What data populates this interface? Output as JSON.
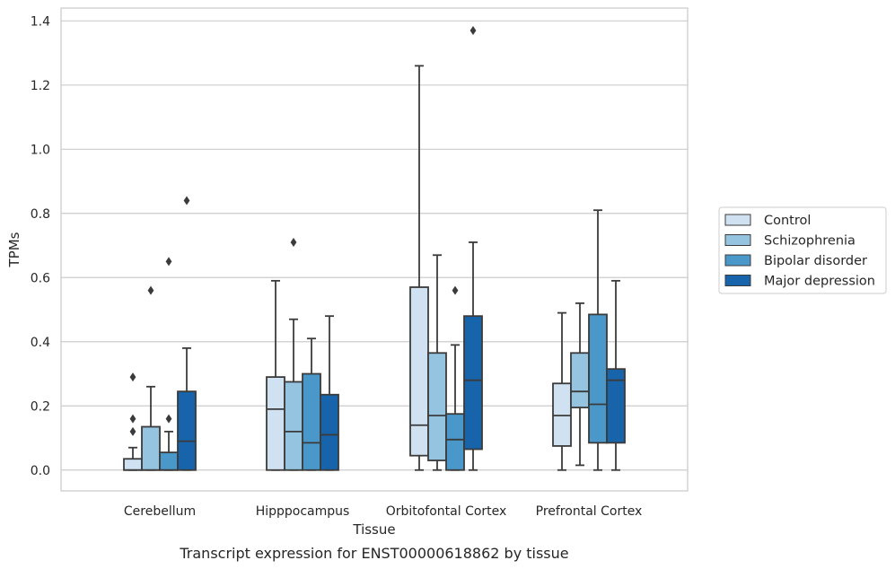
{
  "caption": "Transcript expression for ENST00000618862 by tissue",
  "chart_data": {
    "type": "box",
    "xlabel": "Tissue",
    "ylabel": "TPMs",
    "ylim": [
      -0.065,
      1.44
    ],
    "yticks": [
      "0.0",
      "0.2",
      "0.4",
      "0.6",
      "0.8",
      "1.0",
      "1.2",
      "1.4"
    ],
    "grid": "horizontal",
    "legend_position": "right",
    "categories": [
      "Cerebellum",
      "Hipppocampus",
      "Orbitofontal Cortex",
      "Prefrontal Cortex"
    ],
    "series": [
      {
        "name": "Control",
        "color": "#d0e1f2",
        "boxes": [
          {
            "whislo": 0.0,
            "q1": 0.0,
            "med": 0.0,
            "q3": 0.035,
            "whishi": 0.07,
            "fliers": [
              0.12,
              0.16,
              0.29
            ]
          },
          {
            "whislo": 0.0,
            "q1": 0.0,
            "med": 0.19,
            "q3": 0.29,
            "whishi": 0.59,
            "fliers": []
          },
          {
            "whislo": 0.0,
            "q1": 0.045,
            "med": 0.14,
            "q3": 0.57,
            "whishi": 1.26,
            "fliers": []
          },
          {
            "whislo": 0.0,
            "q1": 0.075,
            "med": 0.17,
            "q3": 0.27,
            "whishi": 0.49,
            "fliers": []
          }
        ]
      },
      {
        "name": "Schizophrenia",
        "color": "#94c4df",
        "boxes": [
          {
            "whislo": 0.0,
            "q1": 0.0,
            "med": 0.0,
            "q3": 0.135,
            "whishi": 0.26,
            "fliers": [
              0.56
            ]
          },
          {
            "whislo": 0.0,
            "q1": 0.0,
            "med": 0.12,
            "q3": 0.275,
            "whishi": 0.47,
            "fliers": [
              0.71
            ]
          },
          {
            "whislo": 0.0,
            "q1": 0.03,
            "med": 0.17,
            "q3": 0.365,
            "whishi": 0.67,
            "fliers": []
          },
          {
            "whislo": 0.015,
            "q1": 0.195,
            "med": 0.245,
            "q3": 0.365,
            "whishi": 0.52,
            "fliers": []
          }
        ]
      },
      {
        "name": "Bipolar disorder",
        "color": "#4a98c9",
        "boxes": [
          {
            "whislo": 0.0,
            "q1": 0.0,
            "med": 0.0,
            "q3": 0.055,
            "whishi": 0.12,
            "fliers": [
              0.16,
              0.65
            ]
          },
          {
            "whislo": 0.0,
            "q1": 0.0,
            "med": 0.085,
            "q3": 0.3,
            "whishi": 0.41,
            "fliers": []
          },
          {
            "whislo": 0.0,
            "q1": 0.0,
            "med": 0.095,
            "q3": 0.175,
            "whishi": 0.39,
            "fliers": [
              0.56
            ]
          },
          {
            "whislo": 0.0,
            "q1": 0.085,
            "med": 0.205,
            "q3": 0.485,
            "whishi": 0.81,
            "fliers": []
          }
        ]
      },
      {
        "name": "Major depression",
        "color": "#1764ab",
        "boxes": [
          {
            "whislo": 0.0,
            "q1": 0.0,
            "med": 0.09,
            "q3": 0.245,
            "whishi": 0.38,
            "fliers": [
              0.84
            ]
          },
          {
            "whislo": 0.0,
            "q1": 0.0,
            "med": 0.11,
            "q3": 0.235,
            "whishi": 0.48,
            "fliers": []
          },
          {
            "whislo": 0.0,
            "q1": 0.065,
            "med": 0.28,
            "q3": 0.48,
            "whishi": 0.71,
            "fliers": [
              1.37
            ]
          },
          {
            "whislo": 0.0,
            "q1": 0.085,
            "med": 0.28,
            "q3": 0.315,
            "whishi": 0.59,
            "fliers": []
          }
        ]
      }
    ]
  }
}
